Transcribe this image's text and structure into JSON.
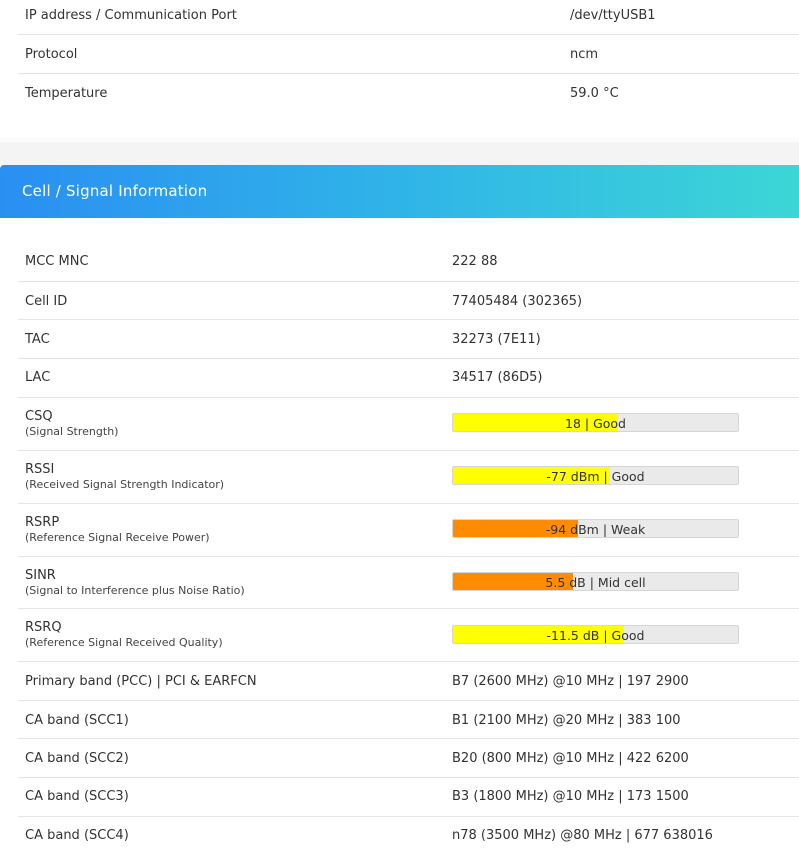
{
  "top_table": {
    "rows": [
      {
        "label": "IP address / Communication Port",
        "value": "/dev/ttyUSB1"
      },
      {
        "label": "Protocol",
        "value": "ncm"
      },
      {
        "label": "Temperature",
        "value": "59.0 °C"
      }
    ]
  },
  "cell_section": {
    "title": "Cell / Signal Information",
    "rows": [
      {
        "label": "MCC MNC",
        "value": "222 88"
      },
      {
        "label": "Cell ID",
        "value": "77405484 (302365)"
      },
      {
        "label": "TAC",
        "value": "32273 (7E11)"
      },
      {
        "label": "LAC",
        "value": "34517 (86D5)"
      }
    ],
    "signals": [
      {
        "label": "CSQ",
        "sublabel": "(Signal Strength)",
        "bar_text": "18 | Good",
        "fill_fraction": 0.58,
        "color": "#ffff00"
      },
      {
        "label": "RSSI",
        "sublabel": "(Received Signal Strength Indicator)",
        "bar_text": "-77 dBm | Good",
        "fill_fraction": 0.55,
        "color": "#ffff00"
      },
      {
        "label": "RSRP",
        "sublabel": "(Reference Signal Receive Power)",
        "bar_text": "-94 dBm | Weak",
        "fill_fraction": 0.44,
        "color": "#ff8c00"
      },
      {
        "label": "SINR",
        "sublabel": "(Signal to Interference plus Noise Ratio)",
        "bar_text": "5.5 dB | Mid cell",
        "fill_fraction": 0.42,
        "color": "#ff8c00"
      },
      {
        "label": "RSRQ",
        "sublabel": "(Reference Signal Received Quality)",
        "bar_text": "-11.5 dB | Good",
        "fill_fraction": 0.6,
        "color": "#ffff00"
      }
    ],
    "bands": [
      {
        "label": "Primary band (PCC) | PCI & EARFCN",
        "value": "B7 (2600 MHz) @10 MHz | 197 2900"
      },
      {
        "label": "CA band (SCC1)",
        "value": "B1 (2100 MHz) @20 MHz | 383 100"
      },
      {
        "label": "CA band (SCC2)",
        "value": "B20 (800 MHz) @10 MHz | 422 6200"
      },
      {
        "label": "CA band (SCC3)",
        "value": "B3 (1800 MHz) @10 MHz | 173 1500"
      },
      {
        "label": "CA band (SCC4)",
        "value": "n78 (3500 MHz) @80 MHz | 677 638016"
      }
    ]
  }
}
